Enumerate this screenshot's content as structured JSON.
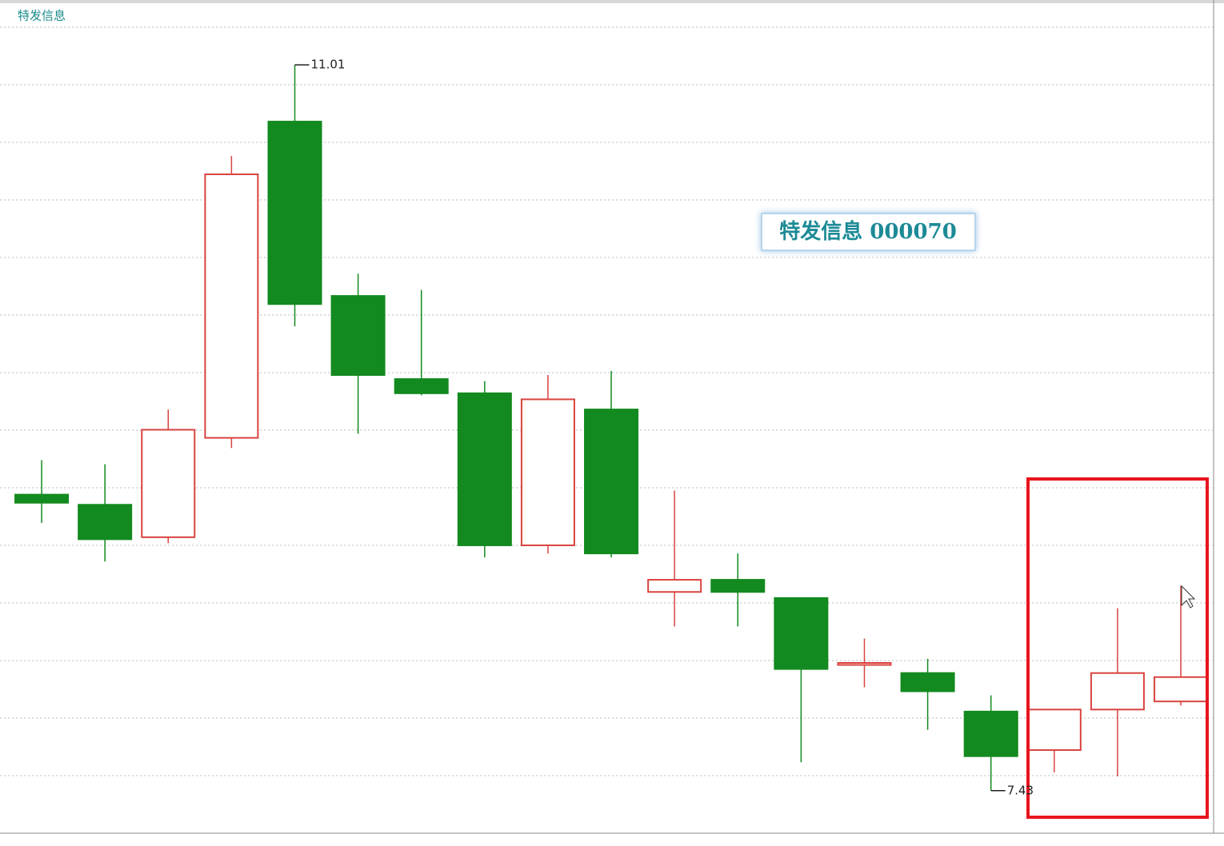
{
  "chart_data": {
    "type": "candlestick",
    "subtitle": "特发信息",
    "title": "特发信息 000070",
    "categories": [
      null,
      null,
      null,
      null,
      null,
      null,
      null,
      null,
      null,
      null,
      null,
      null,
      null,
      null,
      null,
      null,
      null,
      null,
      null
    ],
    "open": [
      8.89,
      8.84,
      8.68,
      9.17,
      10.73,
      9.87,
      9.46,
      9.39,
      8.64,
      9.31,
      8.41,
      8.47,
      8.38,
      8.05,
      8.01,
      7.82,
      7.63,
      7.83,
      7.87
    ],
    "high": [
      9.06,
      9.04,
      9.31,
      10.56,
      11.01,
      9.98,
      9.9,
      9.45,
      9.48,
      9.5,
      8.91,
      8.6,
      8.38,
      8.18,
      8.08,
      7.9,
      7.83,
      8.33,
      8.44
    ],
    "low": [
      8.75,
      8.56,
      8.65,
      9.12,
      9.72,
      9.19,
      9.38,
      8.58,
      8.6,
      8.58,
      8.24,
      8.24,
      7.57,
      7.94,
      7.73,
      7.43,
      7.52,
      7.5,
      7.85
    ],
    "close": [
      8.85,
      8.67,
      9.21,
      10.47,
      9.83,
      9.48,
      9.39,
      8.64,
      9.36,
      8.6,
      8.47,
      8.41,
      8.03,
      8.06,
      7.92,
      7.6,
      7.83,
      8.01,
      7.99
    ],
    "up_color": "#d9433f",
    "down_color": "#138a1f",
    "ylim": [
      7.22,
      11.31
    ]
  }
}
